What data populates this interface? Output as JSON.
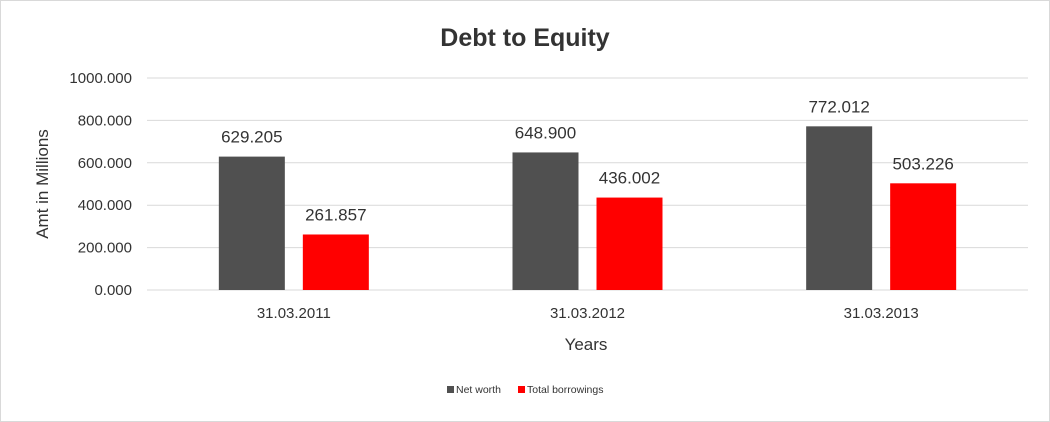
{
  "chart_data": {
    "type": "bar",
    "title": "Debt to Equity",
    "xlabel": "Years",
    "ylabel": "Amt in Millions",
    "categories": [
      "31.03.2011",
      "31.03.2012",
      "31.03.2013"
    ],
    "series": [
      {
        "name": "Net worth",
        "color": "#505050",
        "values": [
          629.205,
          648.9,
          772.012
        ],
        "labels": [
          "629.205",
          "648.900",
          "772.012"
        ]
      },
      {
        "name": "Total borrowings",
        "color": "#ff0000",
        "values": [
          261.857,
          436.002,
          503.226
        ],
        "labels": [
          "261.857",
          "436.002",
          "503.226"
        ]
      }
    ],
    "ylim": [
      0,
      1000
    ],
    "yticks": [
      0,
      200,
      400,
      600,
      800,
      1000
    ],
    "ytick_labels": [
      "0.000",
      "200.000",
      "400.000",
      "600.000",
      "800.000",
      "1000.000"
    ],
    "grid": true,
    "legend_position": "bottom"
  }
}
